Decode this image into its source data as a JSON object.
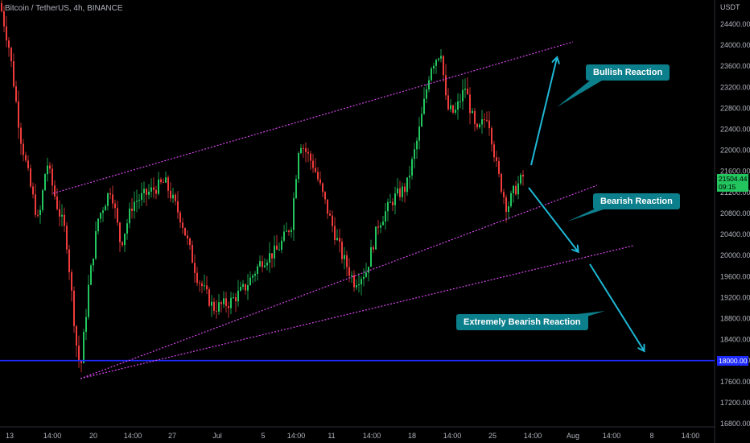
{
  "header": {
    "title": "Bitcoin / TetherUS, 4h, BINANCE"
  },
  "colors": {
    "background": "#000000",
    "up": "#22c55e",
    "down": "#ef3b3b",
    "channel": "#d946ef",
    "support": "#1e2bff",
    "arrow": "#1fb8d6",
    "callout": "#0c7f8c",
    "axis_text": "#b2b5be",
    "last_price_bg": "#22c55e"
  },
  "chart_data": {
    "type": "candlestick",
    "ylabel": "USDT",
    "ylim": [
      16600,
      24800
    ],
    "y_ticks": [
      16800,
      17200,
      17600,
      18000,
      18400,
      18800,
      19200,
      19600,
      20000,
      20400,
      20800,
      21200,
      21600,
      22000,
      22400,
      22800,
      23200,
      23600,
      24000,
      24400
    ],
    "x_tick_labels": [
      "13",
      "14:00",
      "20",
      "14:00",
      "27",
      "Jul",
      "5",
      "14:00",
      "11",
      "14:00",
      "18",
      "14:00",
      "25",
      "14:00",
      "Aug",
      "14:00",
      "8",
      "14:00"
    ],
    "price_path": [
      [
        0,
        24800
      ],
      [
        12,
        23900
      ],
      [
        25,
        22300
      ],
      [
        38,
        21300
      ],
      [
        48,
        20600
      ],
      [
        58,
        21800
      ],
      [
        70,
        21000
      ],
      [
        82,
        20400
      ],
      [
        95,
        18300
      ],
      [
        100,
        17800
      ],
      [
        110,
        19400
      ],
      [
        122,
        20700
      ],
      [
        138,
        21300
      ],
      [
        150,
        20200
      ],
      [
        165,
        21000
      ],
      [
        185,
        21200
      ],
      [
        205,
        21400
      ],
      [
        225,
        20700
      ],
      [
        245,
        19600
      ],
      [
        265,
        19000
      ],
      [
        285,
        19100
      ],
      [
        305,
        19400
      ],
      [
        325,
        19900
      ],
      [
        345,
        20100
      ],
      [
        362,
        20600
      ],
      [
        372,
        22200
      ],
      [
        390,
        21700
      ],
      [
        410,
        20700
      ],
      [
        425,
        20000
      ],
      [
        440,
        19500
      ],
      [
        455,
        19700
      ],
      [
        470,
        20600
      ],
      [
        490,
        21100
      ],
      [
        505,
        21300
      ],
      [
        520,
        22300
      ],
      [
        535,
        23600
      ],
      [
        548,
        23900
      ],
      [
        555,
        22800
      ],
      [
        565,
        22700
      ],
      [
        578,
        23200
      ],
      [
        592,
        22300
      ],
      [
        606,
        22700
      ],
      [
        618,
        21600
      ],
      [
        630,
        20900
      ],
      [
        638,
        21200
      ],
      [
        650,
        21500
      ]
    ],
    "levels": {
      "support": 18000,
      "last_price": 21504.44
    },
    "price_tags": {
      "last_price": "21504.44",
      "countdown": "09:15",
      "support": "18000.00"
    },
    "annotations": [
      "Bullish Reaction",
      "Bearish Reaction",
      "Extremely Bearish Reaction"
    ]
  }
}
